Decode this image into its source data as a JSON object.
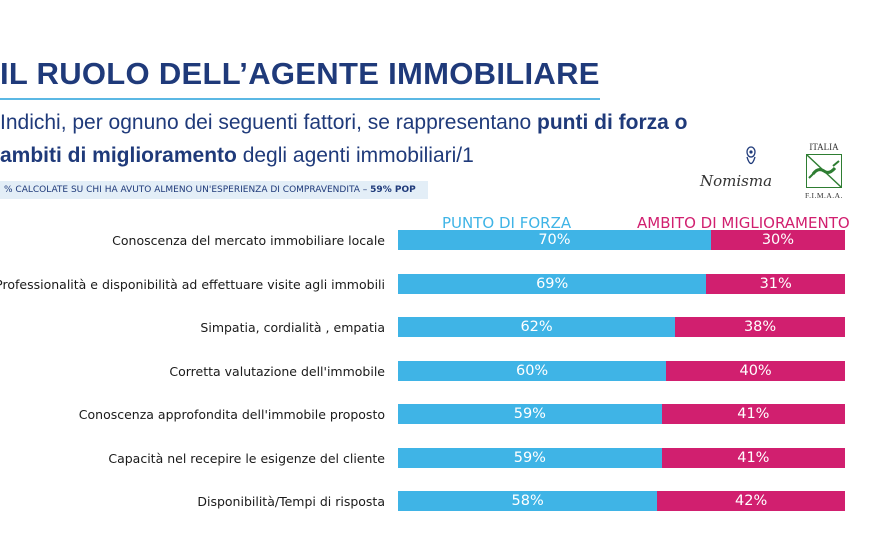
{
  "header": {
    "title": "IL RUOLO DELL’AGENTE IMMOBILIARE",
    "subtitle_line1_normal": "Indichi, per ognuno dei seguenti fattori, se rappresentano ",
    "subtitle_line1_bold": "punti di forza o",
    "subtitle_line2_bold": "ambiti di miglioramento",
    "subtitle_line2_normal": " degli agenti immobiliari/1",
    "note_normal": "% CALCOLATE SU CHI HA AVUTO ALMENO UN'ESPERIENZA DI COMPRAVENDITA – ",
    "note_bold": "59% POP"
  },
  "logos": {
    "nomisma": "Nomisma",
    "fimaa_country": "ITALIA",
    "fimaa_acronym": "F.I.M.A.A."
  },
  "colors": {
    "punto_di_forza": "#3fb4e6",
    "ambito_di_miglioramento": "#d11f6f",
    "title": "#1f3a7a"
  },
  "chart_data": {
    "type": "bar",
    "orientation": "horizontal",
    "stacked": "100%",
    "categories": [
      "Conoscenza del mercato immobiliare locale",
      "Professionalità e disponibilità ad effettuare visite agli immobili",
      "Simpatia, cordialità , empatia",
      "Corretta valutazione dell'immobile",
      "Conoscenza approfondita dell'immobile proposto",
      "Capacità nel recepire le esigenze del cliente",
      "Disponibilità/Tempi di risposta"
    ],
    "series": [
      {
        "name": "PUNTO DI FORZA",
        "values": [
          70,
          69,
          62,
          60,
          59,
          59,
          58
        ],
        "labels": [
          "70%",
          "69%",
          "62%",
          "60%",
          "59%",
          "59%",
          "58%"
        ]
      },
      {
        "name": "AMBITO DI MIGLIORAMENTO",
        "values": [
          30,
          31,
          38,
          40,
          41,
          41,
          42
        ],
        "labels": [
          "30%",
          "31%",
          "38%",
          "40%",
          "41%",
          "41%",
          "42%"
        ]
      }
    ],
    "xlim": [
      0,
      100
    ],
    "legend": "top"
  }
}
